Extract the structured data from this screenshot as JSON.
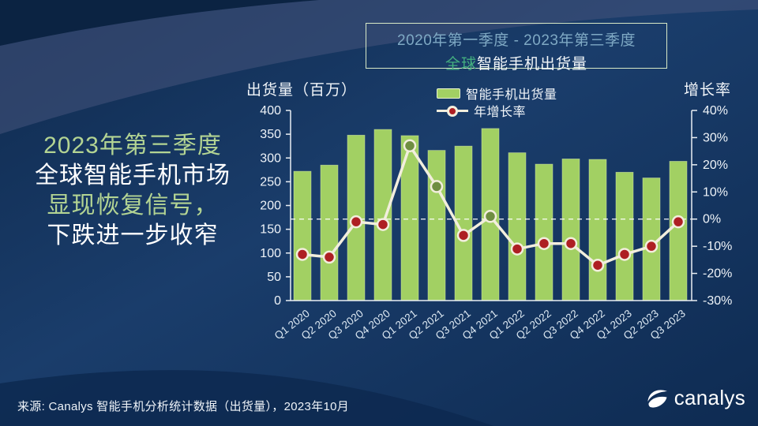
{
  "colors": {
    "background_navy": "#14335e",
    "background_corner": "#0b2342",
    "background_band": "#46547c",
    "background_bottom": "#0d2950",
    "bar_green": "#a2d063",
    "bar_edge": "#dcecb4",
    "line_cream": "#f2eedd",
    "dot_negative_red": "#ae1f23",
    "dot_positive_olive": "#6f8e41",
    "axis_line": "#e9eef3",
    "axis_text": "#eef3f8",
    "xlabel_text": "#dce8f2",
    "title_range_blue": "#7fa9c4",
    "title_highlight_green": "#43af7f",
    "headline_green": "#b3d493",
    "box_border": "#d8e9c6"
  },
  "title_box": {
    "line1": "2020年第一季度 - 2023年第三季度",
    "line2_highlight": "全球",
    "line2_rest": "智能手机出货量"
  },
  "headline": {
    "lines": [
      "2023年第三季度",
      "全球智能手机市场",
      "显现恢复信号，",
      "下跌进一步收窄"
    ]
  },
  "chart_data": {
    "type": "combo bar+line",
    "categories": [
      "Q1 2020",
      "Q2 2020",
      "Q3 2020",
      "Q4 2020",
      "Q1 2021",
      "Q2 2021",
      "Q3 2021",
      "Q4 2021",
      "Q1 2022",
      "Q2 2022",
      "Q3 2022",
      "Q4 2022",
      "Q1 2023",
      "Q2 2023",
      "Q3 2023"
    ],
    "series": [
      {
        "name": "智能手机出货量",
        "type": "bar",
        "axis": "left",
        "unit": "百万 (million units)",
        "values": [
          272,
          285,
          348,
          360,
          347,
          316,
          325,
          362,
          311,
          287,
          298,
          297,
          270,
          258,
          293
        ]
      },
      {
        "name": "年增长率",
        "type": "line",
        "axis": "right",
        "unit": "%",
        "values": [
          -13,
          -14,
          -1,
          -2,
          27,
          12,
          -6,
          1,
          -11,
          -9,
          -9,
          -17,
          -13,
          -10,
          -1
        ]
      }
    ],
    "left_axis": {
      "label": "出货量（百万）",
      "min": 0,
      "max": 400,
      "tick_step": 50
    },
    "right_axis": {
      "label": "增长率",
      "min": -30,
      "max": 40,
      "tick_step": 10,
      "tick_suffix": "%"
    },
    "zero_reference_line": {
      "axis": "right",
      "value": 0,
      "style": "dashed white"
    },
    "legend_position": "top inside",
    "grid": "off",
    "point_color_rule": "positive values olive green, negative values dark red"
  },
  "footer": {
    "source": "来源: Canalys 智能手机分析统计数据（出货量），2023年10月",
    "logo_text": "canalys"
  }
}
